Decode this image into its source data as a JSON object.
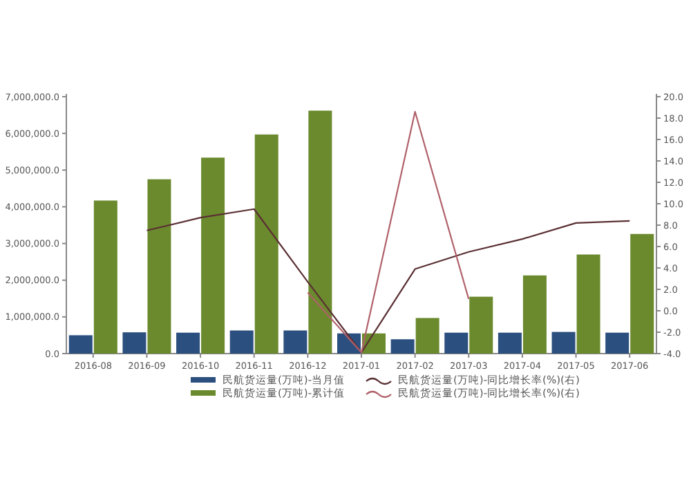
{
  "chart_data": {
    "type": "bar",
    "categories": [
      "2016-08",
      "2016-09",
      "2016-10",
      "2016-11",
      "2016-12",
      "2017-01",
      "2017-02",
      "2017-03",
      "2017-04",
      "2017-05",
      "2017-06"
    ],
    "series": [
      {
        "name": "民航货运量(万吨)-当月值",
        "color": "#2b4f7e",
        "values": [
          500000,
          580000,
          570000,
          630000,
          630000,
          550000,
          390000,
          570000,
          570000,
          590000,
          570000
        ]
      },
      {
        "name": "民航货运量(万吨)-累计值",
        "color": "#6b8a2e",
        "values": [
          4170000,
          4750000,
          5340000,
          5970000,
          6620000,
          550000,
          970000,
          1550000,
          2130000,
          2700000,
          3260000
        ]
      },
      {
        "name": "民航货运量(万吨)-同比增长率(%)(右)",
        "type": "line",
        "axis": "y2",
        "color": "#5a2f33",
        "values": [
          null,
          7.5,
          8.7,
          9.5,
          2.7,
          -3.9,
          3.9,
          5.5,
          6.7,
          8.2,
          8.4
        ]
      },
      {
        "name": "民航货运量(万吨)-同比增长率(%)(右)",
        "type": "line",
        "axis": "y2",
        "color": "#b0606a",
        "values": [
          null,
          null,
          null,
          null,
          1.7,
          -3.9,
          18.6,
          1.1,
          null,
          null,
          null
        ]
      }
    ],
    "ylim": [
      0,
      7000000
    ],
    "yticks": [
      {
        "value": 0,
        "label": "0.0"
      },
      {
        "value": 1000000,
        "label": "1,000,000.0"
      },
      {
        "value": 2000000,
        "label": "2,000,000.0"
      },
      {
        "value": 3000000,
        "label": "3,000,000.0"
      },
      {
        "value": 4000000,
        "label": "4,000,000.0"
      },
      {
        "value": 5000000,
        "label": "5,000,000.0"
      },
      {
        "value": 6000000,
        "label": "6,000,000.0"
      },
      {
        "value": 7000000,
        "label": "7,000,000.0"
      }
    ],
    "y2lim": [
      -4,
      20
    ],
    "y2ticks": [
      {
        "value": -4,
        "label": "-4.0"
      },
      {
        "value": -2,
        "label": "-2.0"
      },
      {
        "value": 0,
        "label": "0.0"
      },
      {
        "value": 2,
        "label": "2.0"
      },
      {
        "value": 4,
        "label": "4.0"
      },
      {
        "value": 6,
        "label": "6.0"
      },
      {
        "value": 8,
        "label": "8.0"
      },
      {
        "value": 10,
        "label": "10.0"
      },
      {
        "value": 12,
        "label": "12.0"
      },
      {
        "value": 14,
        "label": "14.0"
      },
      {
        "value": 16,
        "label": "16.0"
      },
      {
        "value": 18,
        "label": "18.0"
      },
      {
        "value": 20,
        "label": "20.0"
      }
    ],
    "legend": "bottom"
  }
}
